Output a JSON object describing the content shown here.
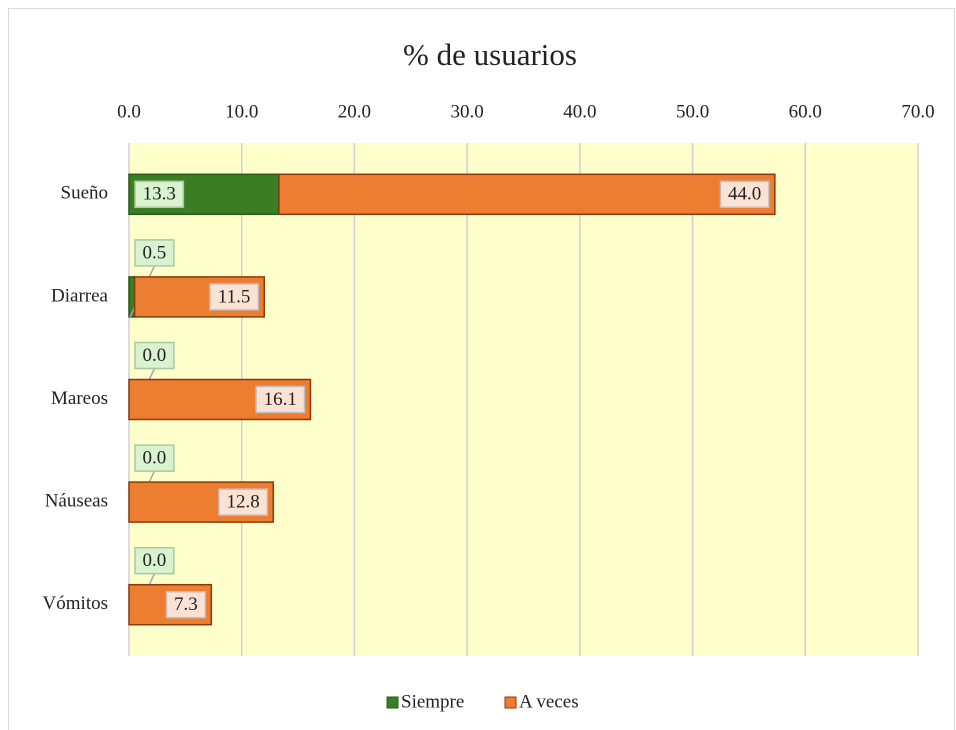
{
  "chart_data": {
    "type": "stacked-bar-horizontal",
    "title": "% de usuarios",
    "categories": [
      "Sueño",
      "Diarrea",
      "Mareos",
      "Náuseas",
      "Vómitos"
    ],
    "series": [
      {
        "name": "Siempre",
        "color": "#3b7d23",
        "values": [
          13.3,
          0.5,
          0,
          0,
          0
        ],
        "value_labels": [
          "13.3",
          "0.5",
          "0.0",
          "0.0",
          "0.0"
        ]
      },
      {
        "name": "A veces",
        "color": "#ed7d31",
        "values": [
          44,
          11.5,
          16.1,
          12.8,
          7.3
        ],
        "value_labels": [
          "44.0",
          "11.5",
          "16.1",
          "12.8",
          "7.3"
        ]
      }
    ],
    "xlim": [
      0,
      70
    ],
    "xticks": [
      {
        "value": 0,
        "label": "0.0"
      },
      {
        "value": 10,
        "label": "10.0"
      },
      {
        "value": 20,
        "label": "20.0"
      },
      {
        "value": 30,
        "label": "30.0"
      },
      {
        "value": 40,
        "label": "40.0"
      },
      {
        "value": 50,
        "label": "50.0"
      },
      {
        "value": 60,
        "label": "60.0"
      },
      {
        "value": 70,
        "label": "70.0"
      }
    ],
    "grid": true,
    "legend": "bottom",
    "background": "#ffffcc"
  }
}
